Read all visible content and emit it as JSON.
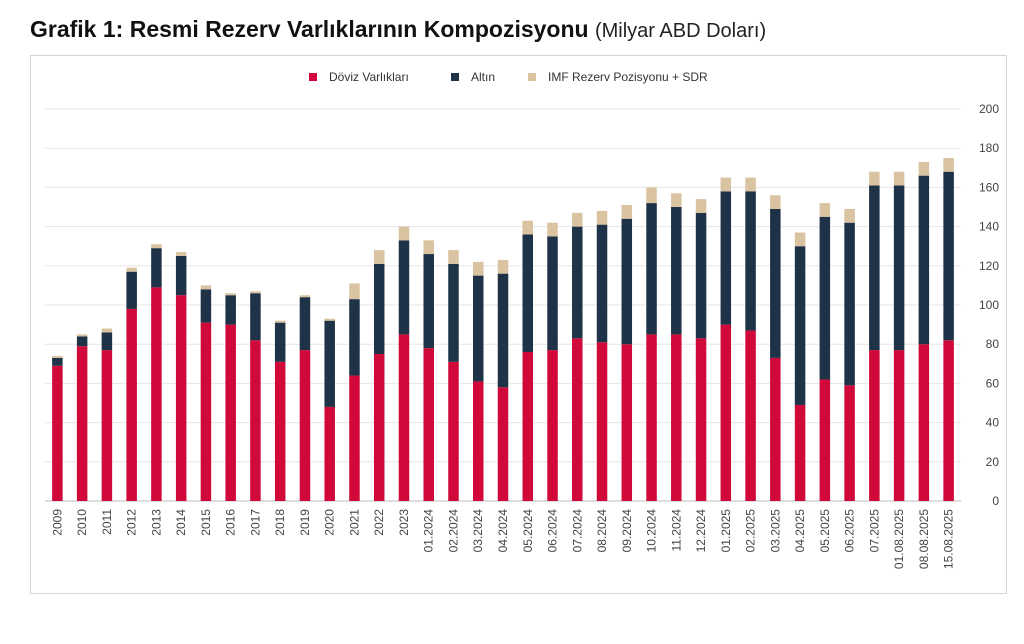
{
  "title": "Grafik 1: Resmi Rezerv Varlıklarının Kompozisyonu",
  "unit": "(Milyar ABD Doları)",
  "chart_data": {
    "type": "bar",
    "stacked": true,
    "categories": [
      "2009",
      "2010",
      "2011",
      "2012",
      "2013",
      "2014",
      "2015",
      "2016",
      "2017",
      "2018",
      "2019",
      "2020",
      "2021",
      "2022",
      "2023",
      "01.2024",
      "02.2024",
      "03.2024",
      "04.2024",
      "05.2024",
      "06.2024",
      "07.2024",
      "08.2024",
      "09.2024",
      "10.2024",
      "11.2024",
      "12.2024",
      "01.2025",
      "02.2025",
      "03.2025",
      "04.2025",
      "05.2025",
      "06.2025",
      "07.2025",
      "01.08.2025",
      "08.08.2025",
      "15.08.2025"
    ],
    "series": [
      {
        "name": "Döviz Varlıkları",
        "color": "#d0093a",
        "values": [
          69,
          79,
          77,
          98,
          109,
          105,
          91,
          90,
          82,
          71,
          77,
          48,
          64,
          75,
          85,
          78,
          71,
          61,
          58,
          76,
          77,
          83,
          81,
          80,
          85,
          85,
          83,
          90,
          87,
          73,
          49,
          62,
          59,
          77,
          77,
          80,
          82
        ]
      },
      {
        "name": "Altın",
        "color": "#1e3347",
        "values": [
          4,
          5,
          9,
          19,
          20,
          20,
          17,
          15,
          24,
          20,
          27,
          44,
          39,
          46,
          48,
          48,
          50,
          54,
          58,
          60,
          58,
          57,
          60,
          64,
          67,
          65,
          64,
          68,
          71,
          76,
          81,
          83,
          83,
          84,
          84,
          86,
          86
        ]
      },
      {
        "name": "IMF Rezerv Pozisyonu + SDR",
        "color": "#d9c3a0",
        "values": [
          1,
          1,
          2,
          2,
          2,
          2,
          2,
          1,
          1,
          1,
          1,
          1,
          8,
          7,
          7,
          7,
          7,
          7,
          7,
          7,
          7,
          7,
          7,
          7,
          8,
          7,
          7,
          7,
          7,
          7,
          7,
          7,
          7,
          7,
          7,
          7,
          7
        ]
      }
    ],
    "ylim": [
      0,
      200
    ],
    "yticks": [
      0,
      20,
      40,
      60,
      80,
      100,
      120,
      140,
      160,
      180,
      200
    ],
    "grid": true,
    "legend_position": "top-center",
    "y_axis_position": "right"
  }
}
